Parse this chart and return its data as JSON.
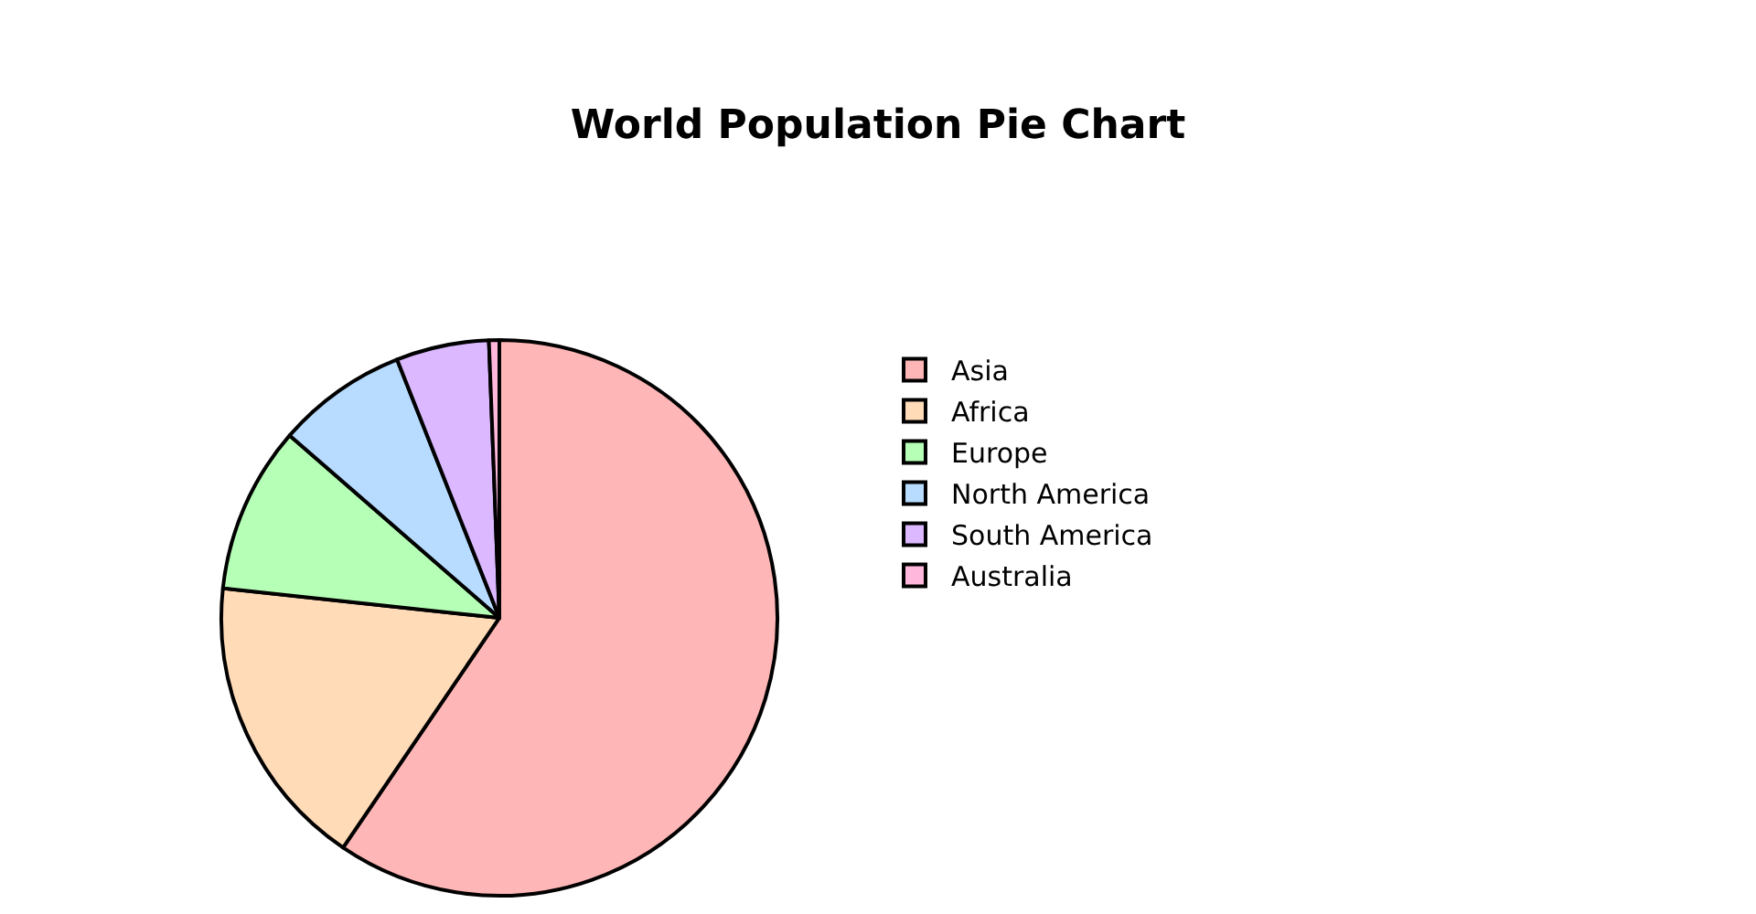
{
  "chart_data": {
    "type": "pie",
    "title": "World Population Pie Chart",
    "categories": [
      "Asia",
      "Africa",
      "Europe",
      "North America",
      "South America",
      "Australia"
    ],
    "values": [
      59.5,
      17.2,
      9.7,
      7.6,
      5.4,
      0.6
    ],
    "colors": [
      "#ffb6b6",
      "#ffdbb8",
      "#b6ffb6",
      "#b8dcff",
      "#dbb8ff",
      "#ffb8db"
    ],
    "legend": "right"
  }
}
